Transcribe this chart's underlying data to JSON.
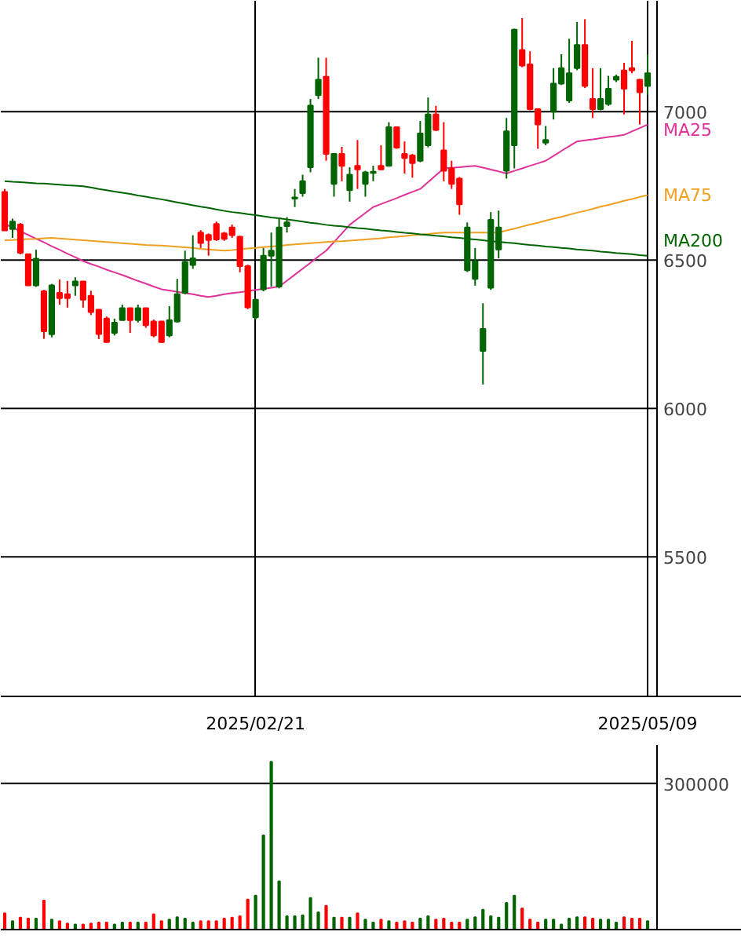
{
  "chart_data": [
    {
      "type": "candlestick",
      "categories": [
        null,
        null,
        null,
        null,
        null,
        null,
        null,
        null,
        null,
        null,
        null,
        null,
        null,
        null,
        null,
        null,
        null,
        null,
        null,
        null,
        null,
        null,
        null,
        null,
        null,
        null,
        null,
        null,
        null,
        null,
        null,
        null,
        "2025/02/21",
        null,
        null,
        null,
        null,
        null,
        null,
        null,
        null,
        null,
        null,
        null,
        null,
        null,
        null,
        null,
        null,
        null,
        null,
        null,
        null,
        null,
        null,
        null,
        null,
        null,
        null,
        null,
        null,
        null,
        null,
        null,
        null,
        null,
        null,
        null,
        null,
        null,
        null,
        null,
        null,
        null,
        null,
        null,
        null,
        null,
        null,
        null,
        null,
        null,
        "2025/05/09"
      ],
      "ohlc": [
        [
          6730,
          6740,
          6600,
          6600
        ],
        [
          6605,
          6640,
          6575,
          6630
        ],
        [
          6620,
          6625,
          6520,
          6525
        ],
        [
          6520,
          6520,
          6415,
          6415
        ],
        [
          6415,
          6535,
          6410,
          6505
        ],
        [
          6395,
          6400,
          6235,
          6260
        ],
        [
          6250,
          6420,
          6240,
          6415
        ],
        [
          6390,
          6435,
          6350,
          6372
        ],
        [
          6385,
          6430,
          6340,
          6372
        ],
        [
          6415,
          6442,
          6380,
          6428
        ],
        [
          6428,
          6430,
          6340,
          6367
        ],
        [
          6380,
          6397,
          6315,
          6325
        ],
        [
          6333,
          6335,
          6234,
          6251
        ],
        [
          6303,
          6310,
          6222,
          6224
        ],
        [
          6255,
          6303,
          6246,
          6289
        ],
        [
          6298,
          6350,
          6298,
          6338
        ],
        [
          6338,
          6340,
          6255,
          6298
        ],
        [
          6298,
          6350,
          6290,
          6338
        ],
        [
          6338,
          6340,
          6272,
          6281
        ],
        [
          6293,
          6300,
          6240,
          6246
        ],
        [
          6293,
          6295,
          6222,
          6224
        ],
        [
          6246,
          6345,
          6240,
          6298
        ],
        [
          6293,
          6437,
          6290,
          6385
        ],
        [
          6390,
          6532,
          6385,
          6494
        ],
        [
          6484,
          6584,
          6471,
          6506
        ],
        [
          6593,
          6601,
          6541,
          6558
        ],
        [
          6585,
          6590,
          6515,
          6568
        ],
        [
          6622,
          6630,
          6565,
          6570
        ],
        [
          6590,
          6595,
          6565,
          6572
        ],
        [
          6610,
          6620,
          6575,
          6584
        ],
        [
          6579,
          6582,
          6459,
          6480
        ],
        [
          6480,
          6485,
          6335,
          6341
        ],
        [
          6307,
          6370,
          6300,
          6367
        ],
        [
          6402,
          6541,
          6395,
          6515
        ],
        [
          6515,
          6593,
          6411,
          6532
        ],
        [
          6411,
          6640,
          6405,
          6610
        ],
        [
          6615,
          6645,
          6593,
          6627
        ],
        [
          6707,
          6740,
          6679,
          6711
        ],
        [
          6726,
          6788,
          6714,
          6766
        ],
        [
          6813,
          7043,
          6796,
          7021
        ],
        [
          7056,
          7182,
          7043,
          7108
        ],
        [
          7118,
          7182,
          6835,
          6858
        ],
        [
          6757,
          6861,
          6714,
          6858
        ],
        [
          6858,
          6882,
          6766,
          6818
        ],
        [
          6736,
          6813,
          6697,
          6788
        ],
        [
          6818,
          6905,
          6740,
          6806
        ],
        [
          6757,
          6801,
          6714,
          6796
        ],
        [
          6794,
          6818,
          6766,
          6798
        ],
        [
          6818,
          6887,
          6804,
          6806
        ],
        [
          6818,
          6965,
          6816,
          6948
        ],
        [
          6948,
          6950,
          6875,
          6879
        ],
        [
          6858,
          6900,
          6792,
          6844
        ],
        [
          6853,
          6858,
          6778,
          6827
        ],
        [
          6835,
          6969,
          6830,
          6927
        ],
        [
          6887,
          7048,
          6880,
          6991
        ],
        [
          6991,
          7020,
          6935,
          6939
        ],
        [
          6870,
          6965,
          6766,
          6801
        ],
        [
          6809,
          6835,
          6740,
          6757
        ],
        [
          6775,
          6780,
          6653,
          6688
        ],
        [
          6466,
          6627,
          6460,
          6610
        ],
        [
          6437,
          6541,
          6414,
          6497
        ],
        [
          6194,
          6355,
          6081,
          6268
        ],
        [
          6407,
          6662,
          6400,
          6636
        ],
        [
          6536,
          6667,
          6506,
          6610
        ],
        [
          6801,
          6979,
          6775,
          6934
        ],
        [
          6887,
          7280,
          6809,
          7277
        ],
        [
          7208,
          7316,
          7150,
          7156
        ],
        [
          7160,
          7204,
          7005,
          7009
        ],
        [
          7009,
          7012,
          6875,
          6957
        ],
        [
          6896,
          6952,
          6887,
          6905
        ],
        [
          7000,
          7147,
          6974,
          7095
        ],
        [
          7095,
          7194,
          7090,
          7147
        ],
        [
          7038,
          7246,
          7030,
          7130
        ],
        [
          7147,
          7303,
          7140,
          7225
        ],
        [
          7225,
          7312,
          7080,
          7087
        ],
        [
          7043,
          7147,
          6979,
          7009
        ],
        [
          7009,
          7147,
          7005,
          7043
        ],
        [
          7026,
          7121,
          7020,
          7078
        ],
        [
          7108,
          7125,
          7100,
          7118
        ],
        [
          7139,
          7165,
          6991,
          7078
        ],
        [
          7147,
          7239,
          7130,
          7139
        ],
        [
          7108,
          7110,
          6957,
          7066
        ],
        [
          7087,
          7194,
          7056,
          7130
        ]
      ],
      "series": [
        {
          "name": "MA25",
          "type": "line",
          "color": "#e0309a",
          "values": [
            6622,
            6610,
            6597,
            6585,
            6572,
            6560,
            6547,
            6535,
            6522,
            6510,
            6497,
            6487,
            6478,
            6468,
            6459,
            6450,
            6440,
            6430,
            6421,
            6411,
            6402,
            6398,
            6393,
            6389,
            6385,
            6380,
            6376,
            6380,
            6385,
            6389,
            6392,
            6396,
            6400,
            6403,
            6407,
            6411,
            6431,
            6451,
            6471,
            6491,
            6512,
            6532,
            6561,
            6590,
            6619,
            6639,
            6659,
            6679,
            6689,
            6699,
            6709,
            6720,
            6730,
            6740,
            6763,
            6786,
            6809,
            6811,
            6813,
            6816,
            6818,
            6812,
            6805,
            6799,
            6792,
            6801,
            6809,
            6818,
            6826,
            6835,
            6851,
            6868,
            6884,
            6900,
            6904,
            6907,
            6911,
            6915,
            6918,
            6922,
            6934,
            6945,
            6957
          ]
        },
        {
          "name": "MA75",
          "type": "line",
          "color": "#f0a020",
          "values": [
            6567,
            6568,
            6570,
            6571,
            6572,
            6574,
            6575,
            6573,
            6571,
            6569,
            6567,
            6565,
            6563,
            6561,
            6559,
            6557,
            6555,
            6553,
            6551,
            6550,
            6549,
            6547,
            6545,
            6543,
            6541,
            6538,
            6536,
            6534,
            6532,
            6534,
            6537,
            6539,
            6541,
            6544,
            6546,
            6548,
            6551,
            6553,
            6555,
            6557,
            6559,
            6561,
            6563,
            6564,
            6566,
            6568,
            6570,
            6572,
            6574,
            6577,
            6579,
            6581,
            6584,
            6586,
            6588,
            6591,
            6593,
            6593,
            6593,
            6593,
            6593,
            6593,
            6593,
            6593,
            6600,
            6606,
            6613,
            6620,
            6626,
            6633,
            6640,
            6646,
            6653,
            6660,
            6666,
            6673,
            6680,
            6686,
            6693,
            6700,
            6706,
            6713,
            6719
          ]
        },
        {
          "name": "MA200",
          "type": "line",
          "color": "#006400",
          "values": [
            6766,
            6764,
            6763,
            6761,
            6759,
            6758,
            6756,
            6754,
            6752,
            6751,
            6749,
            6745,
            6740,
            6736,
            6731,
            6727,
            6723,
            6718,
            6714,
            6709,
            6705,
            6700,
            6695,
            6690,
            6685,
            6680,
            6676,
            6671,
            6666,
            6662,
            6659,
            6655,
            6652,
            6648,
            6644,
            6641,
            6637,
            6634,
            6630,
            6626,
            6623,
            6619,
            6616,
            6614,
            6611,
            6608,
            6606,
            6603,
            6600,
            6598,
            6595,
            6592,
            6590,
            6587,
            6585,
            6582,
            6580,
            6577,
            6575,
            6572,
            6570,
            6567,
            6564,
            6562,
            6559,
            6557,
            6554,
            6551,
            6549,
            6546,
            6544,
            6541,
            6539,
            6536,
            6534,
            6532,
            6529,
            6527,
            6524,
            6522,
            6520,
            6517,
            6515
          ]
        }
      ],
      "ylim": [
        5030,
        7374
      ],
      "yticks": [
        5500,
        6000,
        6500,
        7000
      ],
      "grid": true
    },
    {
      "type": "bar",
      "categories": [
        null,
        null,
        null,
        null,
        null,
        null,
        null,
        null,
        null,
        null,
        null,
        null,
        null,
        null,
        null,
        null,
        null,
        null,
        null,
        null,
        null,
        null,
        null,
        null,
        null,
        null,
        null,
        null,
        null,
        null,
        null,
        null,
        null,
        null,
        null,
        null,
        null,
        null,
        null,
        null,
        null,
        null,
        null,
        null,
        null,
        null,
        null,
        null,
        null,
        null,
        null,
        null,
        null,
        null,
        null,
        null,
        null,
        null,
        null,
        null,
        null,
        null,
        null,
        null,
        null,
        null,
        null,
        null,
        null,
        null,
        null,
        null,
        null,
        null,
        null,
        null,
        null,
        null,
        null,
        null,
        null,
        null,
        null
      ],
      "values": [
        35000,
        19000,
        26000,
        24000,
        24000,
        61000,
        22000,
        19000,
        14000,
        12000,
        12000,
        14000,
        16000,
        16000,
        12000,
        16000,
        16000,
        16000,
        16000,
        33000,
        19000,
        22000,
        27000,
        24000,
        16000,
        19000,
        19000,
        19000,
        24000,
        26000,
        29000,
        63000,
        71000,
        194000,
        344000,
        100000,
        29000,
        29000,
        31000,
        66000,
        37000,
        50000,
        26000,
        26000,
        26000,
        35000,
        22000,
        16000,
        22000,
        19000,
        16000,
        19000,
        16000,
        24000,
        29000,
        22000,
        24000,
        16000,
        16000,
        22000,
        27000,
        42000,
        29000,
        26000,
        56000,
        71000,
        45000,
        22000,
        16000,
        22000,
        22000,
        12000,
        24000,
        27000,
        27000,
        24000,
        22000,
        22000,
        16000,
        27000,
        24000,
        24000,
        19000
      ],
      "colors": [
        "#ff0000",
        "#006400",
        "#ff0000",
        "#ff0000",
        "#006400",
        "#ff0000",
        "#006400",
        "#ff0000",
        "#ff0000",
        "#006400",
        "#ff0000",
        "#ff0000",
        "#ff0000",
        "#ff0000",
        "#006400",
        "#006400",
        "#ff0000",
        "#006400",
        "#ff0000",
        "#ff0000",
        "#ff0000",
        "#006400",
        "#006400",
        "#006400",
        "#006400",
        "#ff0000",
        "#ff0000",
        "#ff0000",
        "#ff0000",
        "#ff0000",
        "#ff0000",
        "#ff0000",
        "#006400",
        "#006400",
        "#006400",
        "#006400",
        "#006400",
        "#006400",
        "#006400",
        "#006400",
        "#006400",
        "#ff0000",
        "#006400",
        "#ff0000",
        "#006400",
        "#ff0000",
        "#006400",
        "#006400",
        "#ff0000",
        "#006400",
        "#ff0000",
        "#ff0000",
        "#ff0000",
        "#006400",
        "#006400",
        "#ff0000",
        "#ff0000",
        "#ff0000",
        "#ff0000",
        "#006400",
        "#006400",
        "#006400",
        "#006400",
        "#006400",
        "#006400",
        "#006400",
        "#ff0000",
        "#ff0000",
        "#ff0000",
        "#006400",
        "#006400",
        "#006400",
        "#006400",
        "#006400",
        "#ff0000",
        "#ff0000",
        "#006400",
        "#006400",
        "#006400",
        "#ff0000",
        "#ff0000",
        "#ff0000",
        "#006400"
      ],
      "ylim": [
        0,
        378000
      ],
      "yticks": [
        {
          "value": 0,
          "label": null
        },
        300000
      ],
      "grid": "y"
    }
  ]
}
